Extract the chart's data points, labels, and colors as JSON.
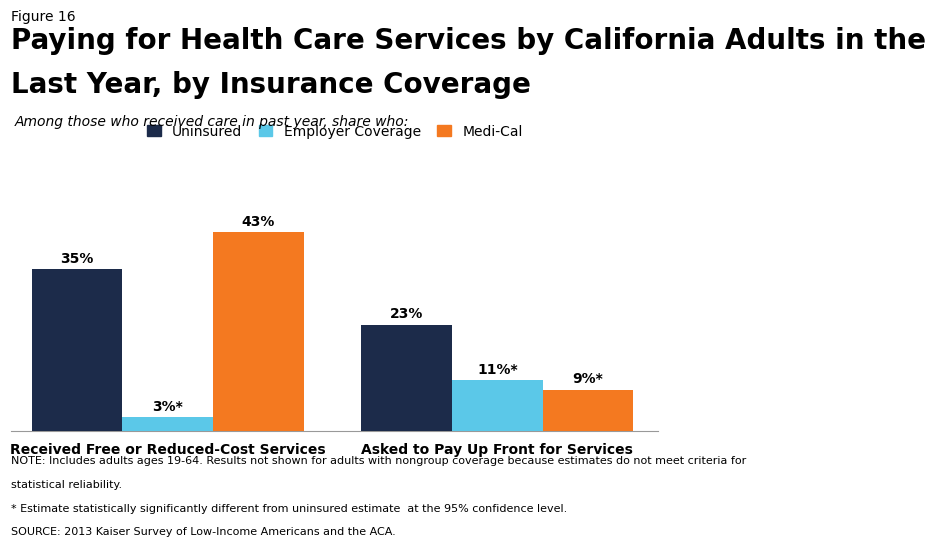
{
  "figure_label": "Figure 16",
  "title_line1": "Paying for Health Care Services by California Adults in the",
  "title_line2": "Last Year, by Insurance Coverage",
  "subtitle": "Among those who received care in past year, share who:",
  "categories": [
    "Received Free or Reduced-Cost Services",
    "Asked to Pay Up Front for Services"
  ],
  "series": [
    {
      "name": "Uninsured",
      "color": "#1c2b4a",
      "values": [
        35,
        23
      ],
      "labels": [
        "35%",
        "23%"
      ]
    },
    {
      "name": "Employer Coverage",
      "color": "#5bc8e8",
      "values": [
        3,
        11
      ],
      "labels": [
        "3%*",
        "11%*"
      ]
    },
    {
      "name": "Medi-Cal",
      "color": "#f47920",
      "values": [
        43,
        9
      ],
      "labels": [
        "43%",
        "9%*"
      ]
    }
  ],
  "ylim": [
    0,
    50
  ],
  "bar_width": 0.22,
  "note_lines": [
    "NOTE: Includes adults ages 19-64. Results not shown for adults with nongroup coverage because estimates do not meet criteria for",
    "statistical reliability.",
    "* Estimate statistically significantly different from uninsured estimate  at the 95% confidence level.",
    "SOURCE: 2013 Kaiser Survey of Low-Income Americans and the ACA."
  ],
  "background_color": "#ffffff",
  "title_fontsize": 20,
  "figure_label_fontsize": 10,
  "subtitle_fontsize": 10,
  "legend_fontsize": 10,
  "bar_label_fontsize": 10,
  "axis_label_fontsize": 10,
  "note_fontsize": 8
}
